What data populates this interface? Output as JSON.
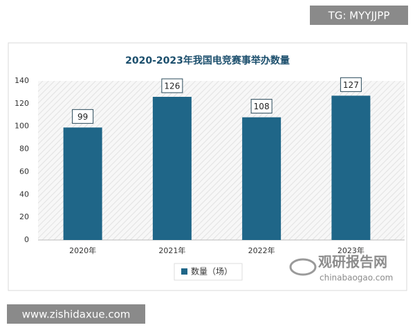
{
  "chart_data": {
    "type": "bar",
    "title": "2020-2023年我国电竞赛事举办数量",
    "categories": [
      "2020年",
      "2021年",
      "2022年",
      "2023年"
    ],
    "series": [
      {
        "name": "数量（场）",
        "color": "#1f6688",
        "values": [
          99,
          126,
          108,
          127
        ]
      }
    ],
    "ylim": [
      0,
      140
    ],
    "yticks": [
      0,
      20,
      40,
      60,
      80,
      100,
      120,
      140
    ],
    "grid": false,
    "legend": "bottom"
  },
  "watermarks": {
    "top_right": "TG: MYYJJPP",
    "bottom_left": "www.zishidaxue.com",
    "logo_name": "观研报告网",
    "logo_url": "chinabaogao.com"
  }
}
